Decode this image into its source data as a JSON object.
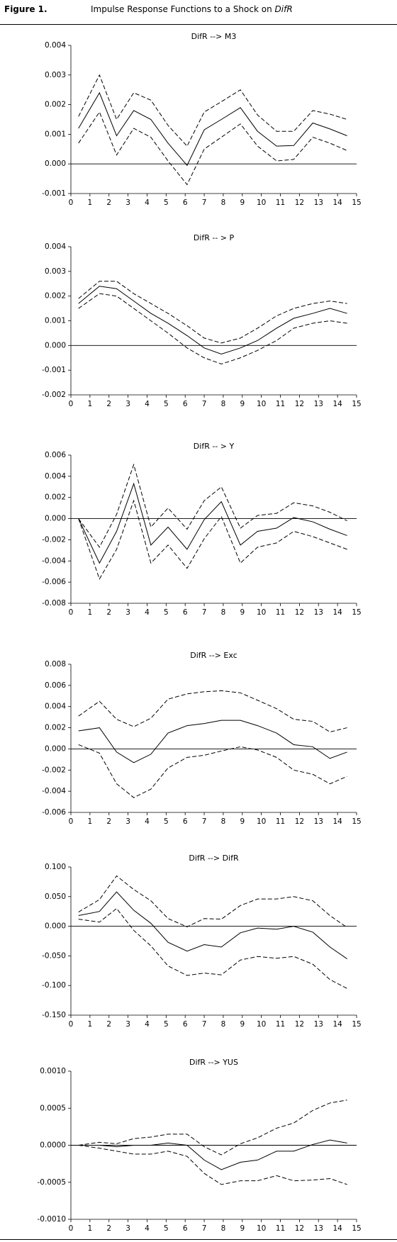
{
  "figure": {
    "label": "Figure 1.",
    "title": "Impulse Response Functions to a Shock on",
    "title_emphasis": "DifR"
  },
  "chart_data": [
    {
      "type": "line",
      "title": "DifR --> M3",
      "x": [
        0.4,
        1.5,
        2.4,
        3.3,
        4.2,
        5.1,
        6.1,
        7.0,
        7.9,
        8.9,
        9.8,
        10.8,
        11.7,
        12.7,
        13.6,
        14.5
      ],
      "xlim": [
        0,
        15
      ],
      "xticks": [
        0,
        1,
        2,
        3,
        4,
        5,
        6,
        7,
        8,
        9,
        10,
        11,
        12,
        13,
        14,
        15
      ],
      "ylim": [
        -0.001,
        0.004
      ],
      "yticks": [
        -0.001,
        {
          "value": 0,
          "label": "0.000"
        },
        0.001,
        0.002,
        0.003,
        0.004
      ],
      "series": [
        {
          "color": "#000000",
          "dash": true,
          "values": [
            0.0016,
            0.003,
            0.0015,
            0.0024,
            0.00215,
            0.0013,
            0.0006,
            0.00175,
            0.0021,
            0.0025,
            0.00165,
            0.0011,
            0.0011,
            0.0018,
            0.00168,
            0.0015
          ]
        },
        {
          "color": "#000000",
          "dash": false,
          "values": [
            0.0012,
            0.0024,
            0.00095,
            0.0018,
            0.0015,
            0.0007,
            -5e-05,
            0.00115,
            0.0015,
            0.0019,
            0.0011,
            0.0006,
            0.00062,
            0.00138,
            0.00118,
            0.00095
          ]
        },
        {
          "color": "#000000",
          "dash": true,
          "values": [
            0.0007,
            0.00175,
            0.0003,
            0.0012,
            0.0009,
            0.0001,
            -0.0007,
            0.0005,
            0.0009,
            0.00135,
            0.0006,
            0.0001,
            0.00015,
            0.0009,
            0.0007,
            0.00045
          ]
        }
      ]
    },
    {
      "type": "line",
      "title": "DifR -- > P",
      "x": [
        0.4,
        1.5,
        2.4,
        3.3,
        4.2,
        5.1,
        6.1,
        7.0,
        7.9,
        8.9,
        9.8,
        10.8,
        11.7,
        12.7,
        13.6,
        14.5
      ],
      "xlim": [
        0,
        15
      ],
      "xticks": [
        0,
        1,
        2,
        3,
        4,
        5,
        6,
        7,
        8,
        9,
        10,
        11,
        12,
        13,
        14,
        15
      ],
      "ylim": [
        -0.002,
        0.004
      ],
      "yticks": [
        -0.002,
        -0.001,
        {
          "value": 0,
          "label": "0.000"
        },
        0.001,
        0.002,
        0.003,
        0.004
      ],
      "series": [
        {
          "color": "#000000",
          "dash": true,
          "values": [
            0.0019,
            0.0026,
            0.0026,
            0.0021,
            0.0017,
            0.0013,
            0.0008,
            0.0003,
            0.0001,
            0.0003,
            0.0007,
            0.0012,
            0.0015,
            0.0017,
            0.0018,
            0.0017
          ]
        },
        {
          "color": "#000000",
          "dash": false,
          "values": [
            0.0017,
            0.0024,
            0.0023,
            0.0018,
            0.0013,
            0.0009,
            0.0004,
            -0.0001,
            -0.00035,
            -0.0001,
            0.0002,
            0.0007,
            0.0011,
            0.0013,
            0.0015,
            0.0013
          ]
        },
        {
          "color": "#000000",
          "dash": true,
          "values": [
            0.0015,
            0.0021,
            0.002,
            0.0015,
            0.001,
            0.0005,
            -0.0001,
            -0.0005,
            -0.00075,
            -0.0005,
            -0.0002,
            0.0002,
            0.0007,
            0.0009,
            0.001,
            0.0009
          ]
        }
      ]
    },
    {
      "type": "line",
      "title": "DifR -- > Y",
      "x": [
        0.4,
        1.5,
        2.4,
        3.3,
        4.2,
        5.1,
        6.1,
        7.0,
        7.9,
        8.9,
        9.8,
        10.8,
        11.7,
        12.7,
        13.6,
        14.5
      ],
      "xlim": [
        0,
        15
      ],
      "xticks": [
        0,
        1,
        2,
        3,
        4,
        5,
        6,
        7,
        8,
        9,
        10,
        11,
        12,
        13,
        14,
        15
      ],
      "ylim": [
        -0.008,
        0.006
      ],
      "yticks": [
        -0.008,
        -0.006,
        -0.004,
        -0.002,
        {
          "value": 0,
          "label": "0.000"
        },
        0.002,
        0.004,
        0.006
      ],
      "series": [
        {
          "color": "#000000",
          "dash": true,
          "values": [
            0.0,
            -0.0027,
            0.0004,
            0.0051,
            -0.0008,
            0.001,
            -0.001,
            0.0017,
            0.003,
            -0.0009,
            0.0003,
            0.0005,
            0.0015,
            0.0012,
            0.0006,
            -0.0002
          ]
        },
        {
          "color": "#000000",
          "dash": false,
          "values": [
            0.0,
            -0.0042,
            -0.0012,
            0.0033,
            -0.0025,
            -0.0008,
            -0.0029,
            -0.0001,
            0.0016,
            -0.0025,
            -0.0012,
            -0.0009,
            0.0001,
            -0.0003,
            -0.001,
            -0.0016
          ]
        },
        {
          "color": "#000000",
          "dash": true,
          "values": [
            0.0,
            -0.0057,
            -0.0029,
            0.0017,
            -0.0042,
            -0.0025,
            -0.0047,
            -0.0019,
            0.0002,
            -0.0042,
            -0.0027,
            -0.0023,
            -0.0012,
            -0.0017,
            -0.0023,
            -0.0029
          ]
        }
      ]
    },
    {
      "type": "line",
      "title": "DifR --> Exc",
      "x": [
        0.4,
        1.5,
        2.4,
        3.3,
        4.2,
        5.1,
        6.1,
        7.0,
        7.9,
        8.9,
        9.8,
        10.8,
        11.7,
        12.7,
        13.6,
        14.5
      ],
      "xlim": [
        0,
        15
      ],
      "xticks": [
        0,
        1,
        2,
        3,
        4,
        5,
        6,
        7,
        8,
        9,
        10,
        11,
        12,
        13,
        14,
        15
      ],
      "ylim": [
        -0.006,
        0.008
      ],
      "yticks": [
        -0.006,
        -0.004,
        -0.002,
        {
          "value": 0,
          "label": "0.000"
        },
        0.002,
        0.004,
        0.006,
        0.008
      ],
      "series": [
        {
          "color": "#000000",
          "dash": true,
          "values": [
            0.0031,
            0.0045,
            0.0028,
            0.0021,
            0.0029,
            0.0047,
            0.0052,
            0.0054,
            0.0055,
            0.0053,
            0.0046,
            0.0038,
            0.0028,
            0.0026,
            0.0016,
            0.002
          ]
        },
        {
          "color": "#000000",
          "dash": false,
          "values": [
            0.0017,
            0.002,
            -0.0003,
            -0.0013,
            -0.0005,
            0.0015,
            0.0022,
            0.0024,
            0.0027,
            0.0027,
            0.0022,
            0.0015,
            0.0004,
            0.0002,
            -0.0009,
            -0.0003
          ]
        },
        {
          "color": "#000000",
          "dash": true,
          "values": [
            0.0004,
            -0.0004,
            -0.0033,
            -0.0046,
            -0.0038,
            -0.0018,
            -0.0008,
            -0.0006,
            -0.0002,
            0.0002,
            -0.0001,
            -0.0008,
            -0.002,
            -0.0024,
            -0.0033,
            -0.0026
          ]
        }
      ]
    },
    {
      "type": "line",
      "title": "DifR --> DifR",
      "x": [
        0.4,
        1.5,
        2.4,
        3.3,
        4.2,
        5.1,
        6.1,
        7.0,
        7.9,
        8.9,
        9.8,
        10.8,
        11.7,
        12.7,
        13.6,
        14.5
      ],
      "xlim": [
        0,
        15
      ],
      "xticks": [
        0,
        1,
        2,
        3,
        4,
        5,
        6,
        7,
        8,
        9,
        10,
        11,
        12,
        13,
        14,
        15
      ],
      "ylim": [
        -0.15,
        0.1
      ],
      "yticks": [
        {
          "value": -0.15,
          "label": "-0.150"
        },
        {
          "value": -0.1,
          "label": "-0.100"
        },
        {
          "value": -0.05,
          "label": "-0.050"
        },
        {
          "value": 0,
          "label": "0.000"
        },
        {
          "value": 0.05,
          "label": "0.050"
        },
        {
          "value": 0.1,
          "label": "0.100"
        }
      ],
      "series": [
        {
          "color": "#000000",
          "dash": true,
          "values": [
            0.024,
            0.045,
            0.085,
            0.062,
            0.043,
            0.013,
            -0.001,
            0.013,
            0.012,
            0.035,
            0.046,
            0.046,
            0.05,
            0.043,
            0.018,
            -0.002
          ]
        },
        {
          "color": "#000000",
          "dash": false,
          "values": [
            0.018,
            0.025,
            0.058,
            0.027,
            0.005,
            -0.027,
            -0.042,
            -0.031,
            -0.035,
            -0.011,
            -0.003,
            -0.005,
            0.0,
            -0.01,
            -0.035,
            -0.055
          ]
        },
        {
          "color": "#000000",
          "dash": true,
          "values": [
            0.012,
            0.007,
            0.03,
            -0.007,
            -0.033,
            -0.067,
            -0.083,
            -0.079,
            -0.082,
            -0.057,
            -0.051,
            -0.054,
            -0.051,
            -0.064,
            -0.09,
            -0.105
          ]
        }
      ]
    },
    {
      "type": "line",
      "title": "DifR --> YUS",
      "x": [
        0.4,
        1.5,
        2.4,
        3.3,
        4.2,
        5.1,
        6.1,
        7.0,
        7.9,
        8.9,
        9.8,
        10.8,
        11.7,
        12.7,
        13.6,
        14.5
      ],
      "xlim": [
        0,
        15
      ],
      "xticks": [
        0,
        1,
        2,
        3,
        4,
        5,
        6,
        7,
        8,
        9,
        10,
        11,
        12,
        13,
        14,
        15
      ],
      "ylim": [
        -0.001,
        0.001
      ],
      "yticks": [
        {
          "value": -0.001,
          "label": "-0.0010"
        },
        {
          "value": -0.0005,
          "label": "-0.0005"
        },
        {
          "value": 0,
          "label": "0.0000"
        },
        {
          "value": 0.0005,
          "label": "0.0005"
        },
        {
          "value": 0.001,
          "label": "0.0010"
        }
      ],
      "series": [
        {
          "color": "#000000",
          "dash": true,
          "values": [
            0.0,
            4e-05,
            2e-05,
            9e-05,
            0.00011,
            0.00015,
            0.00015,
            -2e-05,
            -0.00013,
            2e-05,
            0.0001,
            0.00023,
            0.0003,
            0.00047,
            0.00057,
            0.00061
          ]
        },
        {
          "color": "#000000",
          "dash": false,
          "values": [
            0.0,
            0.0,
            -2e-05,
            0.0,
            0.0,
            3e-05,
            0.0,
            -0.0002,
            -0.00033,
            -0.00023,
            -0.0002,
            -8e-05,
            -8e-05,
            1e-05,
            7e-05,
            3e-05
          ]
        },
        {
          "color": "#000000",
          "dash": true,
          "values": [
            0.0,
            -4e-05,
            -8e-05,
            -0.00012,
            -0.00012,
            -8e-05,
            -0.00015,
            -0.00038,
            -0.00053,
            -0.00048,
            -0.00048,
            -0.00041,
            -0.00048,
            -0.00047,
            -0.00045,
            -0.00053
          ]
        }
      ]
    }
  ]
}
